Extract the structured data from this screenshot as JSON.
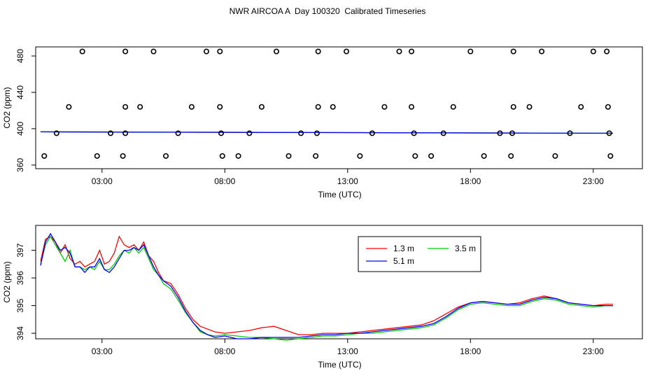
{
  "title": "NWR AIRCOA A  Day 100320  Calibrated Timeseries",
  "chart_data": [
    {
      "type": "scatter",
      "xlabel": "Time (UTC)",
      "ylabel": "CO2 (ppm)",
      "xlim": [
        0.3,
        25.0
      ],
      "ylim": [
        356,
        490
      ],
      "x_ticks": [
        {
          "value": 3,
          "label": "03:00"
        },
        {
          "value": 8,
          "label": "08:00"
        },
        {
          "value": 13,
          "label": "13:00"
        },
        {
          "value": 18,
          "label": "18:00"
        },
        {
          "value": 23,
          "label": "23:00"
        }
      ],
      "y_ticks": [
        {
          "value": 360,
          "label": "360"
        },
        {
          "value": 400,
          "label": "400"
        },
        {
          "value": 440,
          "label": "440"
        },
        {
          "value": 480,
          "label": "480"
        }
      ],
      "grid": false,
      "points": [
        {
          "x": 2.2,
          "y": 485
        },
        {
          "x": 3.95,
          "y": 485
        },
        {
          "x": 5.1,
          "y": 485
        },
        {
          "x": 7.25,
          "y": 485
        },
        {
          "x": 7.8,
          "y": 485
        },
        {
          "x": 10.1,
          "y": 485
        },
        {
          "x": 11.8,
          "y": 485
        },
        {
          "x": 12.95,
          "y": 485
        },
        {
          "x": 15.1,
          "y": 485
        },
        {
          "x": 15.6,
          "y": 485
        },
        {
          "x": 18.0,
          "y": 485
        },
        {
          "x": 19.75,
          "y": 485
        },
        {
          "x": 20.9,
          "y": 485
        },
        {
          "x": 23.0,
          "y": 485
        },
        {
          "x": 23.55,
          "y": 485
        },
        {
          "x": 1.65,
          "y": 424
        },
        {
          "x": 3.95,
          "y": 424
        },
        {
          "x": 4.55,
          "y": 424
        },
        {
          "x": 6.65,
          "y": 424
        },
        {
          "x": 7.8,
          "y": 424
        },
        {
          "x": 9.5,
          "y": 424
        },
        {
          "x": 11.8,
          "y": 424
        },
        {
          "x": 12.4,
          "y": 424
        },
        {
          "x": 14.5,
          "y": 424
        },
        {
          "x": 15.6,
          "y": 424
        },
        {
          "x": 17.3,
          "y": 424
        },
        {
          "x": 19.75,
          "y": 424
        },
        {
          "x": 20.4,
          "y": 424
        },
        {
          "x": 22.5,
          "y": 424
        },
        {
          "x": 23.6,
          "y": 424
        },
        {
          "x": 1.15,
          "y": 395
        },
        {
          "x": 3.35,
          "y": 395
        },
        {
          "x": 3.95,
          "y": 395
        },
        {
          "x": 6.1,
          "y": 395
        },
        {
          "x": 7.85,
          "y": 395
        },
        {
          "x": 9.0,
          "y": 395
        },
        {
          "x": 11.1,
          "y": 395
        },
        {
          "x": 11.75,
          "y": 395
        },
        {
          "x": 14.0,
          "y": 395
        },
        {
          "x": 15.7,
          "y": 395
        },
        {
          "x": 16.9,
          "y": 395
        },
        {
          "x": 19.2,
          "y": 395
        },
        {
          "x": 19.7,
          "y": 395
        },
        {
          "x": 22.05,
          "y": 395
        },
        {
          "x": 23.65,
          "y": 395
        },
        {
          "x": 0.65,
          "y": 370
        },
        {
          "x": 2.8,
          "y": 370
        },
        {
          "x": 3.85,
          "y": 370
        },
        {
          "x": 5.6,
          "y": 370
        },
        {
          "x": 7.9,
          "y": 370
        },
        {
          "x": 8.55,
          "y": 370
        },
        {
          "x": 10.6,
          "y": 370
        },
        {
          "x": 11.7,
          "y": 370
        },
        {
          "x": 13.5,
          "y": 370
        },
        {
          "x": 15.75,
          "y": 370
        },
        {
          "x": 16.4,
          "y": 370
        },
        {
          "x": 18.55,
          "y": 370
        },
        {
          "x": 19.65,
          "y": 370
        },
        {
          "x": 21.45,
          "y": 370
        },
        {
          "x": 23.7,
          "y": 370
        }
      ],
      "series": [
        {
          "color": "#ff0000",
          "x": [
            0.5,
            23.8
          ],
          "y": [
            396.5,
            395.0
          ]
        },
        {
          "color": "#00cc00",
          "x": [
            0.5,
            23.8
          ],
          "y": [
            396.5,
            395.0
          ]
        },
        {
          "color": "#0000ff",
          "x": [
            0.5,
            23.8
          ],
          "y": [
            396.5,
            395.0
          ]
        }
      ]
    },
    {
      "type": "line",
      "xlabel": "Time (UTC)",
      "ylabel": "CO2 (ppm)",
      "xlim": [
        0.3,
        25.0
      ],
      "ylim": [
        393.8,
        397.9
      ],
      "x_ticks": [
        {
          "value": 3,
          "label": "03:00"
        },
        {
          "value": 8,
          "label": "08:00"
        },
        {
          "value": 13,
          "label": "13:00"
        },
        {
          "value": 18,
          "label": "18:00"
        },
        {
          "value": 23,
          "label": "23:00"
        }
      ],
      "y_ticks": [
        {
          "value": 394,
          "label": "394"
        },
        {
          "value": 395,
          "label": "395"
        },
        {
          "value": 396,
          "label": "396"
        },
        {
          "value": 397,
          "label": "397"
        }
      ],
      "grid": false,
      "legend": {
        "position": "top-center",
        "columns": 2
      },
      "series": [
        {
          "name": "1.3 m",
          "color": "#ff0000",
          "x": [
            0.5,
            0.7,
            0.9,
            1.1,
            1.3,
            1.5,
            1.7,
            1.9,
            2.1,
            2.3,
            2.5,
            2.7,
            2.9,
            3.1,
            3.3,
            3.5,
            3.7,
            3.9,
            4.1,
            4.3,
            4.5,
            4.7,
            4.9,
            5.1,
            5.3,
            5.5,
            5.8,
            6.1,
            6.4,
            6.7,
            7.0,
            7.3,
            7.6,
            8.0,
            8.5,
            9.0,
            9.5,
            10.0,
            10.5,
            11.0,
            11.5,
            12.0,
            12.5,
            13.0,
            13.5,
            14.0,
            14.5,
            15.0,
            15.5,
            16.0,
            16.5,
            17.0,
            17.5,
            18.0,
            18.5,
            19.0,
            19.5,
            20.0,
            20.5,
            21.0,
            21.5,
            22.0,
            22.5,
            23.0,
            23.5,
            23.8
          ],
          "y": [
            396.6,
            397.4,
            397.5,
            397.3,
            396.9,
            397.2,
            396.7,
            396.5,
            396.6,
            396.4,
            396.5,
            396.6,
            397.0,
            396.5,
            396.6,
            396.9,
            397.5,
            397.2,
            397.1,
            397.2,
            397.0,
            397.3,
            396.8,
            396.6,
            396.2,
            395.9,
            395.8,
            395.4,
            394.9,
            394.5,
            394.25,
            394.15,
            394.05,
            394.0,
            394.05,
            394.1,
            394.2,
            394.25,
            394.1,
            393.95,
            393.95,
            394.0,
            394.0,
            394.0,
            394.05,
            394.1,
            394.15,
            394.2,
            394.25,
            394.3,
            394.45,
            394.7,
            394.95,
            395.1,
            395.15,
            395.1,
            395.05,
            395.1,
            395.25,
            395.35,
            395.25,
            395.1,
            395.05,
            395.0,
            395.05,
            395.05
          ]
        },
        {
          "name": "3.5 m",
          "color": "#00cc00",
          "x": [
            0.5,
            0.7,
            0.9,
            1.1,
            1.3,
            1.5,
            1.7,
            1.9,
            2.1,
            2.3,
            2.5,
            2.7,
            2.9,
            3.1,
            3.3,
            3.5,
            3.7,
            3.9,
            4.1,
            4.3,
            4.5,
            4.7,
            4.9,
            5.1,
            5.3,
            5.5,
            5.8,
            6.1,
            6.4,
            6.7,
            7.0,
            7.3,
            7.6,
            8.0,
            8.5,
            9.0,
            9.5,
            10.0,
            10.5,
            11.0,
            11.5,
            12.0,
            12.5,
            13.0,
            13.5,
            14.0,
            14.5,
            15.0,
            15.5,
            16.0,
            16.5,
            17.0,
            17.5,
            18.0,
            18.5,
            19.0,
            19.5,
            20.0,
            20.5,
            21.0,
            21.5,
            22.0,
            22.5,
            23.0,
            23.5,
            23.8
          ],
          "y": [
            396.5,
            397.2,
            397.5,
            397.2,
            396.9,
            396.6,
            397.0,
            396.4,
            396.4,
            396.3,
            396.4,
            396.3,
            396.6,
            396.3,
            396.3,
            396.5,
            396.8,
            397.0,
            396.9,
            397.1,
            396.9,
            397.1,
            396.7,
            396.3,
            396.1,
            395.8,
            395.6,
            395.2,
            394.75,
            394.4,
            394.05,
            393.95,
            393.9,
            393.95,
            393.9,
            393.85,
            393.85,
            393.8,
            393.75,
            393.8,
            393.85,
            393.9,
            393.9,
            393.95,
            394.0,
            394.0,
            394.05,
            394.1,
            394.15,
            394.2,
            394.3,
            394.55,
            394.85,
            395.05,
            395.1,
            395.05,
            395.0,
            395.0,
            395.15,
            395.25,
            395.2,
            395.05,
            395.0,
            394.95,
            395.0,
            395.0
          ]
        },
        {
          "name": "5.1 m",
          "color": "#0000ff",
          "x": [
            0.5,
            0.7,
            0.9,
            1.1,
            1.3,
            1.5,
            1.7,
            1.9,
            2.1,
            2.3,
            2.5,
            2.7,
            2.9,
            3.1,
            3.3,
            3.5,
            3.7,
            3.9,
            4.1,
            4.3,
            4.5,
            4.7,
            4.9,
            5.1,
            5.3,
            5.5,
            5.8,
            6.1,
            6.4,
            6.7,
            7.0,
            7.3,
            7.6,
            8.0,
            8.5,
            9.0,
            9.5,
            10.0,
            10.5,
            11.0,
            11.5,
            12.0,
            12.5,
            13.0,
            13.5,
            14.0,
            14.5,
            15.0,
            15.5,
            16.0,
            16.5,
            17.0,
            17.5,
            18.0,
            18.5,
            19.0,
            19.5,
            20.0,
            20.5,
            21.0,
            21.5,
            22.0,
            22.5,
            23.0,
            23.5,
            23.8
          ],
          "y": [
            396.45,
            397.3,
            397.6,
            397.3,
            397.0,
            397.1,
            396.9,
            396.4,
            396.4,
            396.2,
            396.4,
            396.4,
            396.7,
            396.3,
            396.2,
            396.4,
            396.7,
            397.0,
            397.0,
            397.1,
            397.0,
            397.2,
            396.8,
            396.4,
            396.1,
            395.9,
            395.7,
            395.3,
            394.8,
            394.4,
            394.1,
            393.95,
            393.85,
            393.9,
            393.8,
            393.8,
            393.85,
            393.85,
            393.85,
            393.85,
            393.9,
            393.95,
            393.95,
            394.0,
            394.0,
            394.05,
            394.1,
            394.15,
            394.2,
            394.25,
            394.35,
            394.6,
            394.9,
            395.1,
            395.15,
            395.1,
            395.05,
            395.05,
            395.2,
            395.3,
            395.25,
            395.1,
            395.05,
            395.0,
            395.0,
            395.0
          ]
        }
      ]
    }
  ]
}
